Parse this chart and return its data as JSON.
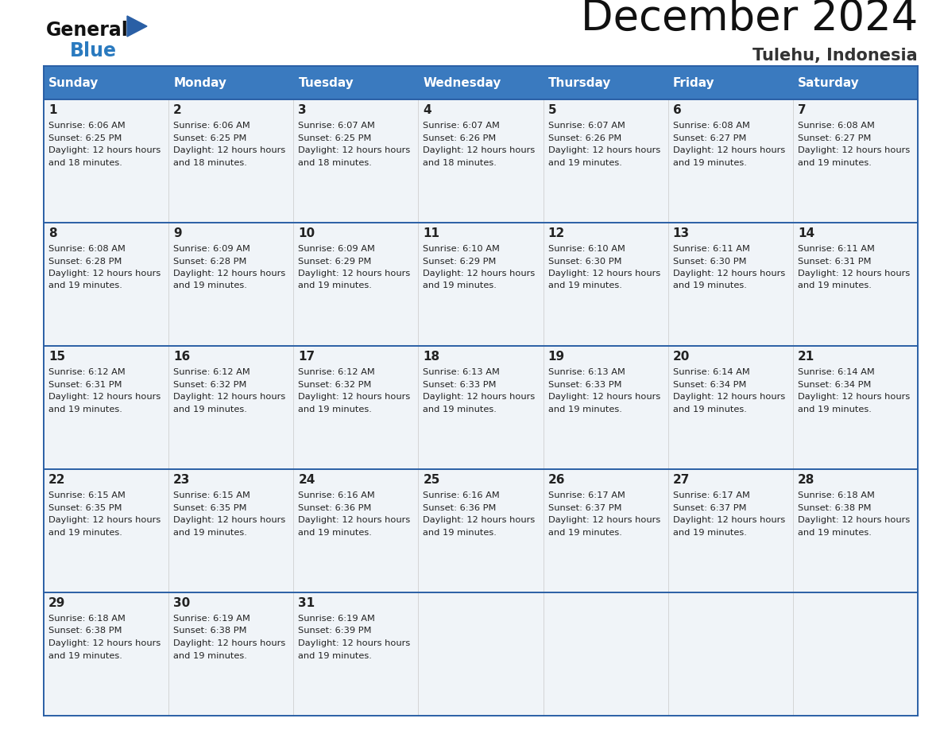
{
  "title": "December 2024",
  "subtitle": "Tulehu, Indonesia",
  "header_color": "#3a7abf",
  "header_text_color": "#ffffff",
  "cell_bg_color": "#f0f4f8",
  "border_color": "#2a5fa5",
  "text_color": "#222222",
  "days_of_week": [
    "Sunday",
    "Monday",
    "Tuesday",
    "Wednesday",
    "Thursday",
    "Friday",
    "Saturday"
  ],
  "calendar": [
    [
      {
        "day": 1,
        "sunrise": "6:06 AM",
        "sunset": "6:25 PM",
        "daylight": "12 hours and 18 minutes."
      },
      {
        "day": 2,
        "sunrise": "6:06 AM",
        "sunset": "6:25 PM",
        "daylight": "12 hours and 18 minutes."
      },
      {
        "day": 3,
        "sunrise": "6:07 AM",
        "sunset": "6:25 PM",
        "daylight": "12 hours and 18 minutes."
      },
      {
        "day": 4,
        "sunrise": "6:07 AM",
        "sunset": "6:26 PM",
        "daylight": "12 hours and 18 minutes."
      },
      {
        "day": 5,
        "sunrise": "6:07 AM",
        "sunset": "6:26 PM",
        "daylight": "12 hours and 19 minutes."
      },
      {
        "day": 6,
        "sunrise": "6:08 AM",
        "sunset": "6:27 PM",
        "daylight": "12 hours and 19 minutes."
      },
      {
        "day": 7,
        "sunrise": "6:08 AM",
        "sunset": "6:27 PM",
        "daylight": "12 hours and 19 minutes."
      }
    ],
    [
      {
        "day": 8,
        "sunrise": "6:08 AM",
        "sunset": "6:28 PM",
        "daylight": "12 hours and 19 minutes."
      },
      {
        "day": 9,
        "sunrise": "6:09 AM",
        "sunset": "6:28 PM",
        "daylight": "12 hours and 19 minutes."
      },
      {
        "day": 10,
        "sunrise": "6:09 AM",
        "sunset": "6:29 PM",
        "daylight": "12 hours and 19 minutes."
      },
      {
        "day": 11,
        "sunrise": "6:10 AM",
        "sunset": "6:29 PM",
        "daylight": "12 hours and 19 minutes."
      },
      {
        "day": 12,
        "sunrise": "6:10 AM",
        "sunset": "6:30 PM",
        "daylight": "12 hours and 19 minutes."
      },
      {
        "day": 13,
        "sunrise": "6:11 AM",
        "sunset": "6:30 PM",
        "daylight": "12 hours and 19 minutes."
      },
      {
        "day": 14,
        "sunrise": "6:11 AM",
        "sunset": "6:31 PM",
        "daylight": "12 hours and 19 minutes."
      }
    ],
    [
      {
        "day": 15,
        "sunrise": "6:12 AM",
        "sunset": "6:31 PM",
        "daylight": "12 hours and 19 minutes."
      },
      {
        "day": 16,
        "sunrise": "6:12 AM",
        "sunset": "6:32 PM",
        "daylight": "12 hours and 19 minutes."
      },
      {
        "day": 17,
        "sunrise": "6:12 AM",
        "sunset": "6:32 PM",
        "daylight": "12 hours and 19 minutes."
      },
      {
        "day": 18,
        "sunrise": "6:13 AM",
        "sunset": "6:33 PM",
        "daylight": "12 hours and 19 minutes."
      },
      {
        "day": 19,
        "sunrise": "6:13 AM",
        "sunset": "6:33 PM",
        "daylight": "12 hours and 19 minutes."
      },
      {
        "day": 20,
        "sunrise": "6:14 AM",
        "sunset": "6:34 PM",
        "daylight": "12 hours and 19 minutes."
      },
      {
        "day": 21,
        "sunrise": "6:14 AM",
        "sunset": "6:34 PM",
        "daylight": "12 hours and 19 minutes."
      }
    ],
    [
      {
        "day": 22,
        "sunrise": "6:15 AM",
        "sunset": "6:35 PM",
        "daylight": "12 hours and 19 minutes."
      },
      {
        "day": 23,
        "sunrise": "6:15 AM",
        "sunset": "6:35 PM",
        "daylight": "12 hours and 19 minutes."
      },
      {
        "day": 24,
        "sunrise": "6:16 AM",
        "sunset": "6:36 PM",
        "daylight": "12 hours and 19 minutes."
      },
      {
        "day": 25,
        "sunrise": "6:16 AM",
        "sunset": "6:36 PM",
        "daylight": "12 hours and 19 minutes."
      },
      {
        "day": 26,
        "sunrise": "6:17 AM",
        "sunset": "6:37 PM",
        "daylight": "12 hours and 19 minutes."
      },
      {
        "day": 27,
        "sunrise": "6:17 AM",
        "sunset": "6:37 PM",
        "daylight": "12 hours and 19 minutes."
      },
      {
        "day": 28,
        "sunrise": "6:18 AM",
        "sunset": "6:38 PM",
        "daylight": "12 hours and 19 minutes."
      }
    ],
    [
      {
        "day": 29,
        "sunrise": "6:18 AM",
        "sunset": "6:38 PM",
        "daylight": "12 hours and 19 minutes."
      },
      {
        "day": 30,
        "sunrise": "6:19 AM",
        "sunset": "6:38 PM",
        "daylight": "12 hours and 19 minutes."
      },
      {
        "day": 31,
        "sunrise": "6:19 AM",
        "sunset": "6:39 PM",
        "daylight": "12 hours and 19 minutes."
      },
      null,
      null,
      null,
      null
    ]
  ],
  "logo_text1": "General",
  "logo_text2": "Blue",
  "logo_triangle_color": "#2a5fa5",
  "title_fontsize": 38,
  "subtitle_fontsize": 15,
  "header_fontsize": 11,
  "day_num_fontsize": 11,
  "cell_text_fontsize": 8.2
}
